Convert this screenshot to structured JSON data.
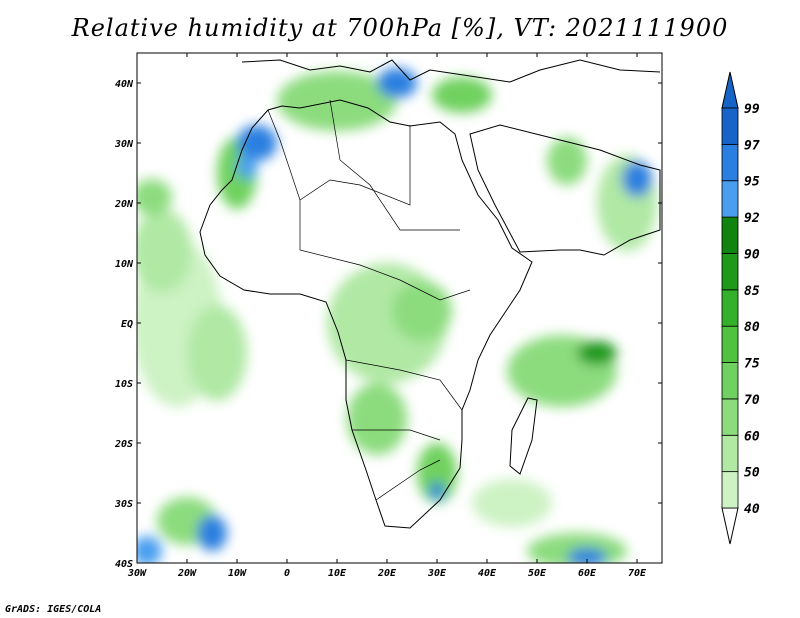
{
  "title": "Relative humidity at 700hPa [%], VT: 2021111900",
  "credit": "GrADS: IGES/COLA",
  "map": {
    "lon_range": [
      -30,
      75
    ],
    "lat_range": [
      -40,
      45
    ],
    "lon_ticks": [
      {
        "value": -30,
        "label": "30W"
      },
      {
        "value": -20,
        "label": "20W"
      },
      {
        "value": -10,
        "label": "10W"
      },
      {
        "value": 0,
        "label": "0"
      },
      {
        "value": 10,
        "label": "10E"
      },
      {
        "value": 20,
        "label": "20E"
      },
      {
        "value": 30,
        "label": "30E"
      },
      {
        "value": 40,
        "label": "40E"
      },
      {
        "value": 50,
        "label": "50E"
      },
      {
        "value": 60,
        "label": "60E"
      },
      {
        "value": 70,
        "label": "70E"
      }
    ],
    "lat_ticks": [
      {
        "value": 40,
        "label": "40N"
      },
      {
        "value": 30,
        "label": "30N"
      },
      {
        "value": 20,
        "label": "20N"
      },
      {
        "value": 10,
        "label": "10N"
      },
      {
        "value": 0,
        "label": "EQ"
      },
      {
        "value": -10,
        "label": "10S"
      },
      {
        "value": -20,
        "label": "20S"
      },
      {
        "value": -30,
        "label": "30S"
      },
      {
        "value": -40,
        "label": "40S"
      }
    ]
  },
  "colorbar": {
    "levels": [
      {
        "label": "40",
        "color": "#eefaea"
      },
      {
        "label": "50",
        "color": "#cdf2c4"
      },
      {
        "label": "60",
        "color": "#b0e8a4"
      },
      {
        "label": "70",
        "color": "#8cdc7e"
      },
      {
        "label": "75",
        "color": "#6fd15f"
      },
      {
        "label": "80",
        "color": "#4fc33e"
      },
      {
        "label": "85",
        "color": "#35b02a"
      },
      {
        "label": "90",
        "color": "#1f991a"
      },
      {
        "label": "92",
        "color": "#11840f"
      },
      {
        "label": "95",
        "color": "#4a9ef0"
      },
      {
        "label": "97",
        "color": "#2a7fe0"
      },
      {
        "label": "99",
        "color": "#1664c8"
      }
    ],
    "top_color": "#1664c8",
    "bottom_color": "#ffffff"
  },
  "humidity_regions": [
    {
      "lon": -22,
      "lat": 0,
      "rx": 9,
      "ry": 14,
      "color": "#cdf2c4"
    },
    {
      "lon": -14,
      "lat": -5,
      "rx": 6,
      "ry": 8,
      "color": "#b0e8a4"
    },
    {
      "lon": -25,
      "lat": 12,
      "rx": 6,
      "ry": 7,
      "color": "#b0e8a4"
    },
    {
      "lon": -27,
      "lat": 21,
      "rx": 4,
      "ry": 3,
      "color": "#8cdc7e"
    },
    {
      "lon": -10,
      "lat": 25,
      "rx": 4,
      "ry": 6,
      "color": "#6fd15f"
    },
    {
      "lon": -6,
      "lat": 30,
      "rx": 4,
      "ry": 3,
      "color": "#2a7fe0"
    },
    {
      "lon": -8,
      "lat": 26,
      "rx": 2,
      "ry": 2,
      "color": "#4a9ef0"
    },
    {
      "lon": 10,
      "lat": 37,
      "rx": 12,
      "ry": 5,
      "color": "#8cdc7e"
    },
    {
      "lon": 22,
      "lat": 40,
      "rx": 4,
      "ry": 2.5,
      "color": "#2a7fe0"
    },
    {
      "lon": 35,
      "lat": 38,
      "rx": 6,
      "ry": 3,
      "color": "#6fd15f"
    },
    {
      "lon": 20,
      "lat": 0,
      "rx": 12,
      "ry": 10,
      "color": "#b0e8a4"
    },
    {
      "lon": 27,
      "lat": 2,
      "rx": 6,
      "ry": 5,
      "color": "#8cdc7e"
    },
    {
      "lon": 18,
      "lat": -16,
      "rx": 6,
      "ry": 6,
      "color": "#8cdc7e"
    },
    {
      "lon": 30,
      "lat": -25,
      "rx": 4,
      "ry": 5,
      "color": "#6fd15f"
    },
    {
      "lon": 30,
      "lat": -28,
      "rx": 1.5,
      "ry": 1.5,
      "color": "#2a7fe0"
    },
    {
      "lon": 55,
      "lat": -8,
      "rx": 11,
      "ry": 6,
      "color": "#8cdc7e"
    },
    {
      "lon": 62,
      "lat": -5,
      "rx": 4,
      "ry": 2,
      "color": "#1f991a"
    },
    {
      "lon": 68,
      "lat": 20,
      "rx": 6,
      "ry": 8,
      "color": "#b0e8a4"
    },
    {
      "lon": 70,
      "lat": 24,
      "rx": 3,
      "ry": 3,
      "color": "#2a7fe0"
    },
    {
      "lon": 56,
      "lat": 27,
      "rx": 4,
      "ry": 4,
      "color": "#8cdc7e"
    },
    {
      "lon": -20,
      "lat": -33,
      "rx": 6,
      "ry": 4,
      "color": "#8cdc7e"
    },
    {
      "lon": -15,
      "lat": -35,
      "rx": 3,
      "ry": 3,
      "color": "#2a7fe0"
    },
    {
      "lon": 58,
      "lat": -38,
      "rx": 10,
      "ry": 3,
      "color": "#8cdc7e"
    },
    {
      "lon": 60,
      "lat": -39,
      "rx": 4,
      "ry": 1.5,
      "color": "#2a7fe0"
    },
    {
      "lon": 45,
      "lat": -30,
      "rx": 8,
      "ry": 4,
      "color": "#cdf2c4"
    },
    {
      "lon": -28,
      "lat": -38,
      "rx": 3,
      "ry": 2.5,
      "color": "#4a9ef0"
    }
  ]
}
